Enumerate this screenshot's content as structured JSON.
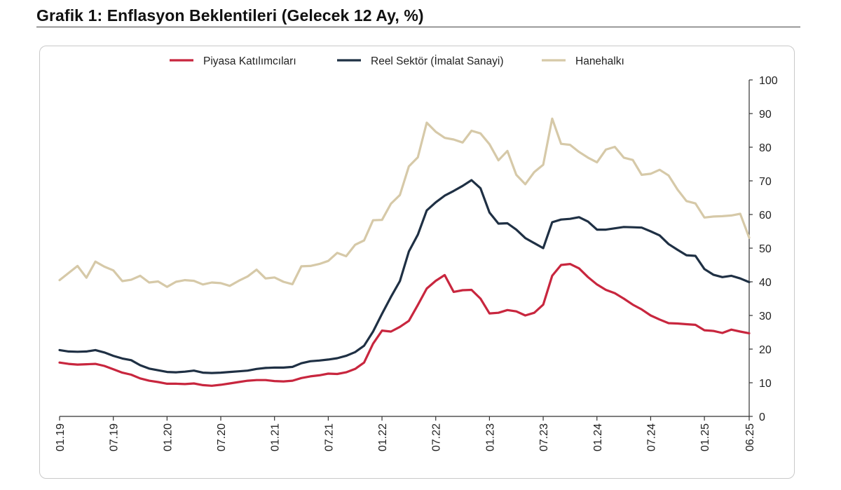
{
  "title": "Grafik 1: Enflasyon Beklentileri (Gelecek 12 Ay, %)",
  "chart_data": {
    "type": "line",
    "title": "Grafik 1: Enflasyon Beklentileri (Gelecek 12 Ay, %)",
    "xlabel": "",
    "ylabel": "",
    "ylim": [
      0,
      100
    ],
    "yticks": [
      0,
      10,
      20,
      30,
      40,
      50,
      60,
      70,
      80,
      90,
      100
    ],
    "y_axis_side": "right",
    "grid": false,
    "legend_position": "top",
    "x_tick_labels": [
      "01.19",
      "07.19",
      "01.20",
      "07.20",
      "01.21",
      "07.21",
      "01.22",
      "07.22",
      "01.23",
      "07.23",
      "01.24",
      "07.24",
      "01.25",
      "06.25"
    ],
    "x": [
      "01.19",
      "02.19",
      "03.19",
      "04.19",
      "05.19",
      "06.19",
      "07.19",
      "08.19",
      "09.19",
      "10.19",
      "11.19",
      "12.19",
      "01.20",
      "02.20",
      "03.20",
      "04.20",
      "05.20",
      "06.20",
      "07.20",
      "08.20",
      "09.20",
      "10.20",
      "11.20",
      "12.20",
      "01.21",
      "02.21",
      "03.21",
      "04.21",
      "05.21",
      "06.21",
      "07.21",
      "08.21",
      "09.21",
      "10.21",
      "11.21",
      "12.21",
      "01.22",
      "02.22",
      "03.22",
      "04.22",
      "05.22",
      "06.22",
      "07.22",
      "08.22",
      "09.22",
      "10.22",
      "11.22",
      "12.22",
      "01.23",
      "02.23",
      "03.23",
      "04.23",
      "05.23",
      "06.23",
      "07.23",
      "08.23",
      "09.23",
      "10.23",
      "11.23",
      "12.23",
      "01.24",
      "02.24",
      "03.24",
      "04.24",
      "05.24",
      "06.24",
      "07.24",
      "08.24",
      "09.24",
      "10.24",
      "11.24",
      "12.24",
      "01.25",
      "02.25",
      "03.25",
      "04.25",
      "05.25",
      "06.25"
    ],
    "series": [
      {
        "name": "Piyasa Katılımcıları",
        "color": "#c8263e",
        "values": [
          16.0,
          15.6,
          15.4,
          15.5,
          15.6,
          15.0,
          14.0,
          13.0,
          12.4,
          11.3,
          10.6,
          10.2,
          9.7,
          9.7,
          9.6,
          9.8,
          9.3,
          9.1,
          9.4,
          9.8,
          10.2,
          10.6,
          10.8,
          10.8,
          10.5,
          10.4,
          10.6,
          11.4,
          11.9,
          12.2,
          12.7,
          12.6,
          13.1,
          14.1,
          16.0,
          21.6,
          25.5,
          25.2,
          26.6,
          28.4,
          33.1,
          38.0,
          40.3,
          42.0,
          37.0,
          37.5,
          37.6,
          35.0,
          30.6,
          30.8,
          31.6,
          31.2,
          30.0,
          30.8,
          33.2,
          41.8,
          45.0,
          45.3,
          44.0,
          41.4,
          39.2,
          37.6,
          36.6,
          35.0,
          33.2,
          31.8,
          30.0,
          28.8,
          27.7,
          27.6,
          27.4,
          27.2,
          25.6,
          25.4,
          24.8,
          25.8,
          25.2,
          24.7
        ]
      },
      {
        "name": "Reel Sektör (İmalat Sanayi)",
        "color": "#1f3044",
        "values": [
          19.7,
          19.3,
          19.2,
          19.3,
          19.7,
          19.0,
          18.0,
          17.2,
          16.7,
          15.2,
          14.2,
          13.7,
          13.2,
          13.1,
          13.3,
          13.6,
          13.0,
          12.9,
          13.0,
          13.2,
          13.4,
          13.6,
          14.1,
          14.4,
          14.5,
          14.5,
          14.7,
          15.8,
          16.4,
          16.6,
          16.9,
          17.3,
          18.0,
          19.1,
          21.0,
          25.2,
          30.5,
          35.5,
          40.2,
          49.0,
          54.0,
          61.2,
          63.6,
          65.6,
          67.0,
          68.5,
          70.2,
          67.8,
          60.6,
          57.3,
          57.4,
          55.5,
          53.0,
          51.5,
          50.0,
          57.7,
          58.5,
          58.7,
          59.2,
          57.9,
          55.5,
          55.5,
          55.9,
          56.3,
          56.2,
          56.1,
          55.0,
          53.8,
          51.2,
          49.5,
          47.9,
          47.7,
          43.8,
          42.1,
          41.4,
          41.8,
          41.0,
          39.9
        ]
      },
      {
        "name": "Hanehalkı",
        "color": "#d6c9a8",
        "values": [
          40.5,
          42.6,
          44.7,
          41.2,
          46.0,
          44.5,
          43.4,
          40.2,
          40.6,
          41.8,
          39.8,
          40.1,
          38.5,
          40.0,
          40.5,
          40.3,
          39.2,
          39.8,
          39.6,
          38.8,
          40.3,
          41.6,
          43.6,
          41.0,
          41.3,
          40.0,
          39.3,
          44.6,
          44.7,
          45.3,
          46.2,
          48.6,
          47.6,
          51.0,
          52.3,
          58.3,
          58.4,
          63.2,
          65.8,
          74.3,
          77.0,
          87.3,
          84.6,
          82.8,
          82.3,
          81.4,
          84.9,
          84.1,
          80.9,
          76.1,
          78.9,
          71.8,
          69.0,
          72.6,
          74.8,
          88.5,
          81.0,
          80.7,
          78.6,
          76.9,
          75.5,
          79.3,
          80.1,
          76.9,
          76.2,
          71.8,
          72.1,
          73.3,
          71.6,
          67.4,
          64.0,
          63.3,
          59.1,
          59.4,
          59.5,
          59.7,
          60.2,
          53.1
        ]
      }
    ]
  }
}
